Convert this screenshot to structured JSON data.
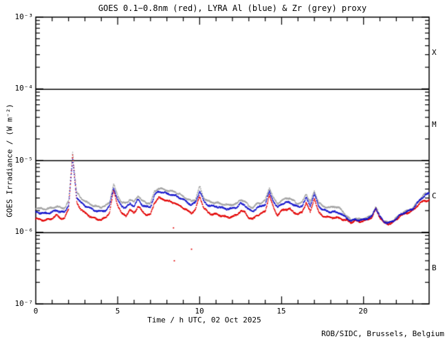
{
  "attribution": "ROB/SIDC, Brussels, Belgium",
  "chart_data": {
    "type": "scatter",
    "title": "GOES 0.1−0.8nm (red), LYRA Al (blue) & Zr (grey) proxy",
    "xlabel": "Time / h UTC, 02 Oct 2025",
    "ylabel": "GOES Irradiance / (W m⁻²)",
    "x_range": [
      0,
      24
    ],
    "x_major_ticks": [
      0,
      5,
      10,
      15,
      20
    ],
    "x_tick_labels": [
      "0",
      "5",
      "10",
      "15",
      "20"
    ],
    "x_minor_tick_step_hours": 1,
    "y_scale": "log",
    "y_range": [
      1e-07,
      0.001
    ],
    "y_tick_labels": [
      "10⁻³",
      "10⁻⁴",
      "10⁻⁵",
      "10⁻⁶",
      "10⁻⁷"
    ],
    "y_tick_exponents": [
      -3,
      -4,
      -5,
      -6,
      -7
    ],
    "hlines": [
      0.0001,
      1e-05,
      1e-06
    ],
    "flare_class_labels": [
      "X",
      "M",
      "C",
      "B"
    ],
    "grid": false,
    "legend": "in title (colors name the series)",
    "unit_scale": 1e-06,
    "x_sample_step_hours": 0.25,
    "series": [
      {
        "name": "GOES 0.1-0.8nm",
        "color": "#e30000",
        "values": [
          1.55,
          1.5,
          1.47,
          1.5,
          1.55,
          1.72,
          1.58,
          1.55,
          2.1,
          12.0,
          2.6,
          2.1,
          1.85,
          1.7,
          1.58,
          1.52,
          1.5,
          1.58,
          1.9,
          3.8,
          2.4,
          1.8,
          1.7,
          2.05,
          1.85,
          2.3,
          1.95,
          1.75,
          1.75,
          2.6,
          3.0,
          2.9,
          2.75,
          2.65,
          2.55,
          2.35,
          2.2,
          2.0,
          1.85,
          2.1,
          3.2,
          2.2,
          1.9,
          1.78,
          1.78,
          1.72,
          1.66,
          1.62,
          1.66,
          1.72,
          2.0,
          1.9,
          1.6,
          1.52,
          1.72,
          1.82,
          1.95,
          3.3,
          2.2,
          1.72,
          2.0,
          2.1,
          2.1,
          1.9,
          1.78,
          1.9,
          2.6,
          1.9,
          3.0,
          1.9,
          1.68,
          1.62,
          1.6,
          1.6,
          1.56,
          1.5,
          1.45,
          1.36,
          1.45,
          1.4,
          1.45,
          1.5,
          1.6,
          2.1,
          1.6,
          1.36,
          1.3,
          1.36,
          1.5,
          1.7,
          1.8,
          1.9,
          2.0,
          2.3,
          2.6,
          2.75,
          2.8
        ]
      },
      {
        "name": "LYRA Al proxy",
        "color": "#1515cc",
        "values": [
          1.9,
          1.86,
          1.84,
          1.86,
          1.9,
          2.02,
          1.92,
          1.9,
          2.4,
          10.0,
          3.1,
          2.6,
          2.35,
          2.2,
          2.05,
          1.98,
          1.95,
          2.02,
          2.3,
          4.2,
          2.8,
          2.3,
          2.2,
          2.5,
          2.3,
          2.85,
          2.4,
          2.25,
          2.25,
          3.3,
          3.7,
          3.6,
          3.45,
          3.35,
          3.25,
          3.05,
          2.85,
          2.6,
          2.4,
          2.6,
          3.8,
          2.7,
          2.4,
          2.3,
          2.3,
          2.22,
          2.16,
          2.1,
          2.16,
          2.22,
          2.5,
          2.4,
          2.05,
          1.95,
          2.2,
          2.3,
          2.45,
          3.7,
          2.7,
          2.2,
          2.5,
          2.6,
          2.6,
          2.4,
          2.25,
          2.35,
          3.0,
          2.35,
          3.4,
          2.35,
          2.05,
          1.98,
          1.92,
          1.92,
          1.86,
          1.72,
          1.56,
          1.42,
          1.52,
          1.46,
          1.5,
          1.56,
          1.66,
          2.18,
          1.64,
          1.4,
          1.34,
          1.4,
          1.56,
          1.76,
          1.88,
          1.98,
          2.1,
          2.5,
          2.9,
          3.3,
          3.45
        ]
      },
      {
        "name": "LYRA Zr proxy",
        "color": "#a3a3a3",
        "values": [
          2.18,
          2.14,
          2.1,
          2.14,
          2.18,
          2.3,
          2.2,
          2.18,
          2.7,
          13.5,
          3.6,
          3.0,
          2.7,
          2.5,
          2.35,
          2.27,
          2.24,
          2.32,
          2.6,
          4.7,
          3.2,
          2.62,
          2.52,
          2.88,
          2.62,
          3.25,
          2.75,
          2.55,
          2.55,
          3.7,
          4.1,
          4.0,
          3.85,
          3.75,
          3.65,
          3.42,
          3.15,
          2.9,
          2.7,
          2.9,
          4.3,
          3.0,
          2.7,
          2.6,
          2.6,
          2.5,
          2.44,
          2.38,
          2.44,
          2.5,
          2.85,
          2.7,
          2.32,
          2.2,
          2.5,
          2.6,
          2.75,
          4.2,
          3.0,
          2.5,
          2.8,
          2.95,
          3.0,
          2.7,
          2.52,
          2.62,
          3.4,
          2.62,
          3.7,
          2.62,
          2.3,
          2.24,
          2.2,
          2.28,
          2.2,
          1.92,
          1.66,
          1.46,
          1.56,
          1.5,
          1.54,
          1.6,
          1.7,
          2.24,
          1.68,
          1.42,
          1.36,
          1.42,
          1.58,
          1.78,
          1.92,
          2.02,
          2.14,
          2.55,
          2.98,
          3.4,
          3.52
        ]
      }
    ],
    "outliers": {
      "color": "#e30000",
      "points_hour_value": [
        [
          8.4,
          1.15
        ],
        [
          8.45,
          0.4
        ],
        [
          9.5,
          0.58
        ]
      ]
    }
  }
}
